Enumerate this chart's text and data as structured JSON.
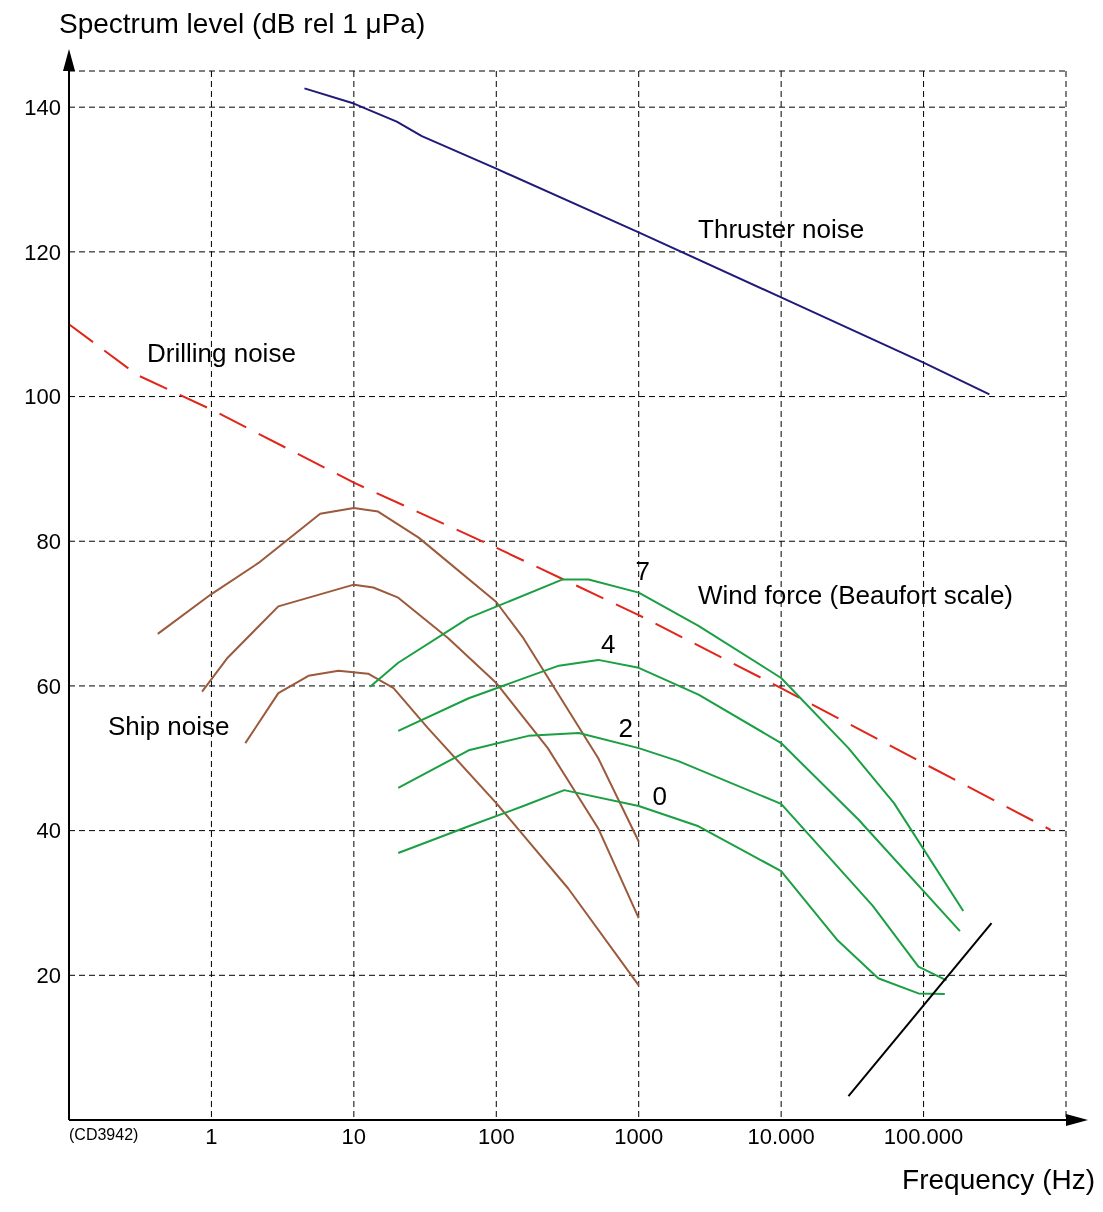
{
  "chart_data": {
    "type": "line",
    "xlabel": "Frequency (Hz)",
    "ylabel": "Spectrum level (dB rel 1 μPa)",
    "log": "x",
    "xlim": [
      0.1,
      1000000
    ],
    "ylim": [
      0,
      145
    ],
    "xticks": [
      1,
      10,
      100,
      1000,
      {
        "value": 10000,
        "label": "10.000"
      },
      {
        "value": 100000,
        "label": "100.000"
      }
    ],
    "yticks": [
      20,
      40,
      60,
      80,
      100,
      120,
      140
    ],
    "grid": true,
    "marker": "none",
    "series": [
      {
        "name": "Thruster noise",
        "color": "#1f1a7a",
        "x": [
          4.5,
          10,
          20,
          30,
          100,
          1000,
          10000,
          100000,
          290000
        ],
        "values": [
          142.6,
          140.5,
          138,
          136,
          131.5,
          122.7,
          113.7,
          104.7,
          100.3
        ]
      },
      {
        "name": "Drilling noise",
        "color": "#e0261b",
        "line_style": "dashed",
        "x": [
          0.1,
          0.3,
          1,
          10,
          100,
          1000,
          10000,
          100000,
          780000
        ],
        "values": [
          110,
          103,
          98.2,
          88.1,
          79.1,
          69.8,
          59.7,
          49.3,
          40.1
        ]
      },
      {
        "color": "#9b5a3c",
        "x": [
          0.42,
          1,
          2.14,
          5.8,
          10,
          14.8,
          28.5,
          100,
          155,
          520,
          1000
        ],
        "values": [
          67.2,
          72.7,
          77,
          83.8,
          84.6,
          84.1,
          80.5,
          71.6,
          66.6,
          50,
          38.5
        ]
      },
      {
        "color": "#9b5a3c",
        "x": [
          0.86,
          1.3,
          2.95,
          10,
          13.7,
          20.5,
          46,
          100,
          230,
          520,
          1000
        ],
        "values": [
          59.2,
          63.9,
          71,
          74,
          73.6,
          72.2,
          66.6,
          60.4,
          51.4,
          40.3,
          27.9
        ]
      },
      {
        "color": "#9b5a3c",
        "x": [
          1.73,
          2.95,
          4.8,
          7.8,
          12.6,
          19,
          33,
          100,
          320,
          1000
        ],
        "values": [
          52.1,
          59,
          61.4,
          62.1,
          61.7,
          59.7,
          54.2,
          43.8,
          32,
          18.6
        ]
      },
      {
        "name": "7",
        "color": "#1aa043",
        "x": [
          13,
          20.5,
          64,
          290,
          445,
          1000,
          2630,
          10000,
          29700,
          62000,
          190000
        ],
        "values": [
          59.9,
          63.2,
          69.4,
          74.7,
          74.7,
          72.9,
          68.3,
          61.1,
          51.4,
          43.8,
          28.9
        ]
      },
      {
        "name": "4",
        "color": "#1aa043",
        "x": [
          20.5,
          64,
          275,
          520,
          1000,
          2630,
          10000,
          35000,
          180000
        ],
        "values": [
          53.8,
          58.3,
          62.8,
          63.6,
          62.5,
          58.8,
          52.1,
          41.5,
          26.1
        ]
      },
      {
        "name": "2",
        "color": "#1aa043",
        "x": [
          20.5,
          64,
          168,
          380,
          1000,
          1900,
          10000,
          44000,
          92000,
          145000
        ],
        "values": [
          45.9,
          51.1,
          53.1,
          53.5,
          51.4,
          49.6,
          43.7,
          29.6,
          21.2,
          19.3
        ]
      },
      {
        "name": "0",
        "color": "#1aa043",
        "x": [
          20.5,
          64,
          155,
          300,
          1000,
          2630,
          10000,
          25000,
          48000,
          92000,
          141000
        ],
        "values": [
          36.9,
          40.6,
          43.4,
          45.6,
          43.4,
          40.6,
          34.4,
          24.8,
          19.6,
          17.5,
          17.4
        ]
      },
      {
        "color": "#000000",
        "x": [
          29700,
          300000
        ],
        "values": [
          3.3,
          27.2
        ]
      }
    ],
    "annotations": [
      "Ship noise",
      "Wind force (Beaufort scale)",
      "(CD3942)"
    ]
  }
}
